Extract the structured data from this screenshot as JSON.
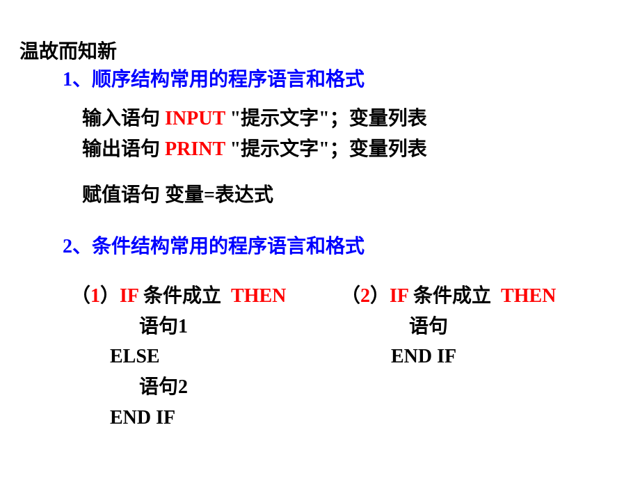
{
  "colors": {
    "background": "#ffffff",
    "text": "#000000",
    "blue": "#0000ff",
    "red": "#ff0000"
  },
  "typography": {
    "font_family": "SimSun",
    "font_size": 28,
    "font_weight": "bold"
  },
  "heading": "温故而知新",
  "section1": {
    "title_num": "1",
    "title_text": "、顺序结构常用的程序语言和格式",
    "input": {
      "label": "输入语句  ",
      "keyword": "INPUT ",
      "rest": "\"提示文字\"；变量列表"
    },
    "output": {
      "label": "输出语句  ",
      "keyword": "PRINT ",
      "rest": "\"提示文字\"；变量列表"
    },
    "assign": {
      "label": "赋值语句  变量=表达式"
    }
  },
  "section2": {
    "title_num": "2",
    "title_text": "、条件结构常用的程序语言和格式",
    "block1": {
      "paren_open": "（",
      "num": "1",
      "paren_close": "）",
      "if": "IF ",
      "cond": "条件成立  ",
      "then": "THEN",
      "stmt1": "语句1",
      "else": "ELSE",
      "stmt2": "语句2",
      "endif": "END IF"
    },
    "block2": {
      "paren_open": "（",
      "num": "2",
      "paren_close": "）",
      "if": "IF ",
      "cond": "条件成立  ",
      "then": "THEN",
      "stmt": "语句",
      "endif": "END IF"
    }
  }
}
